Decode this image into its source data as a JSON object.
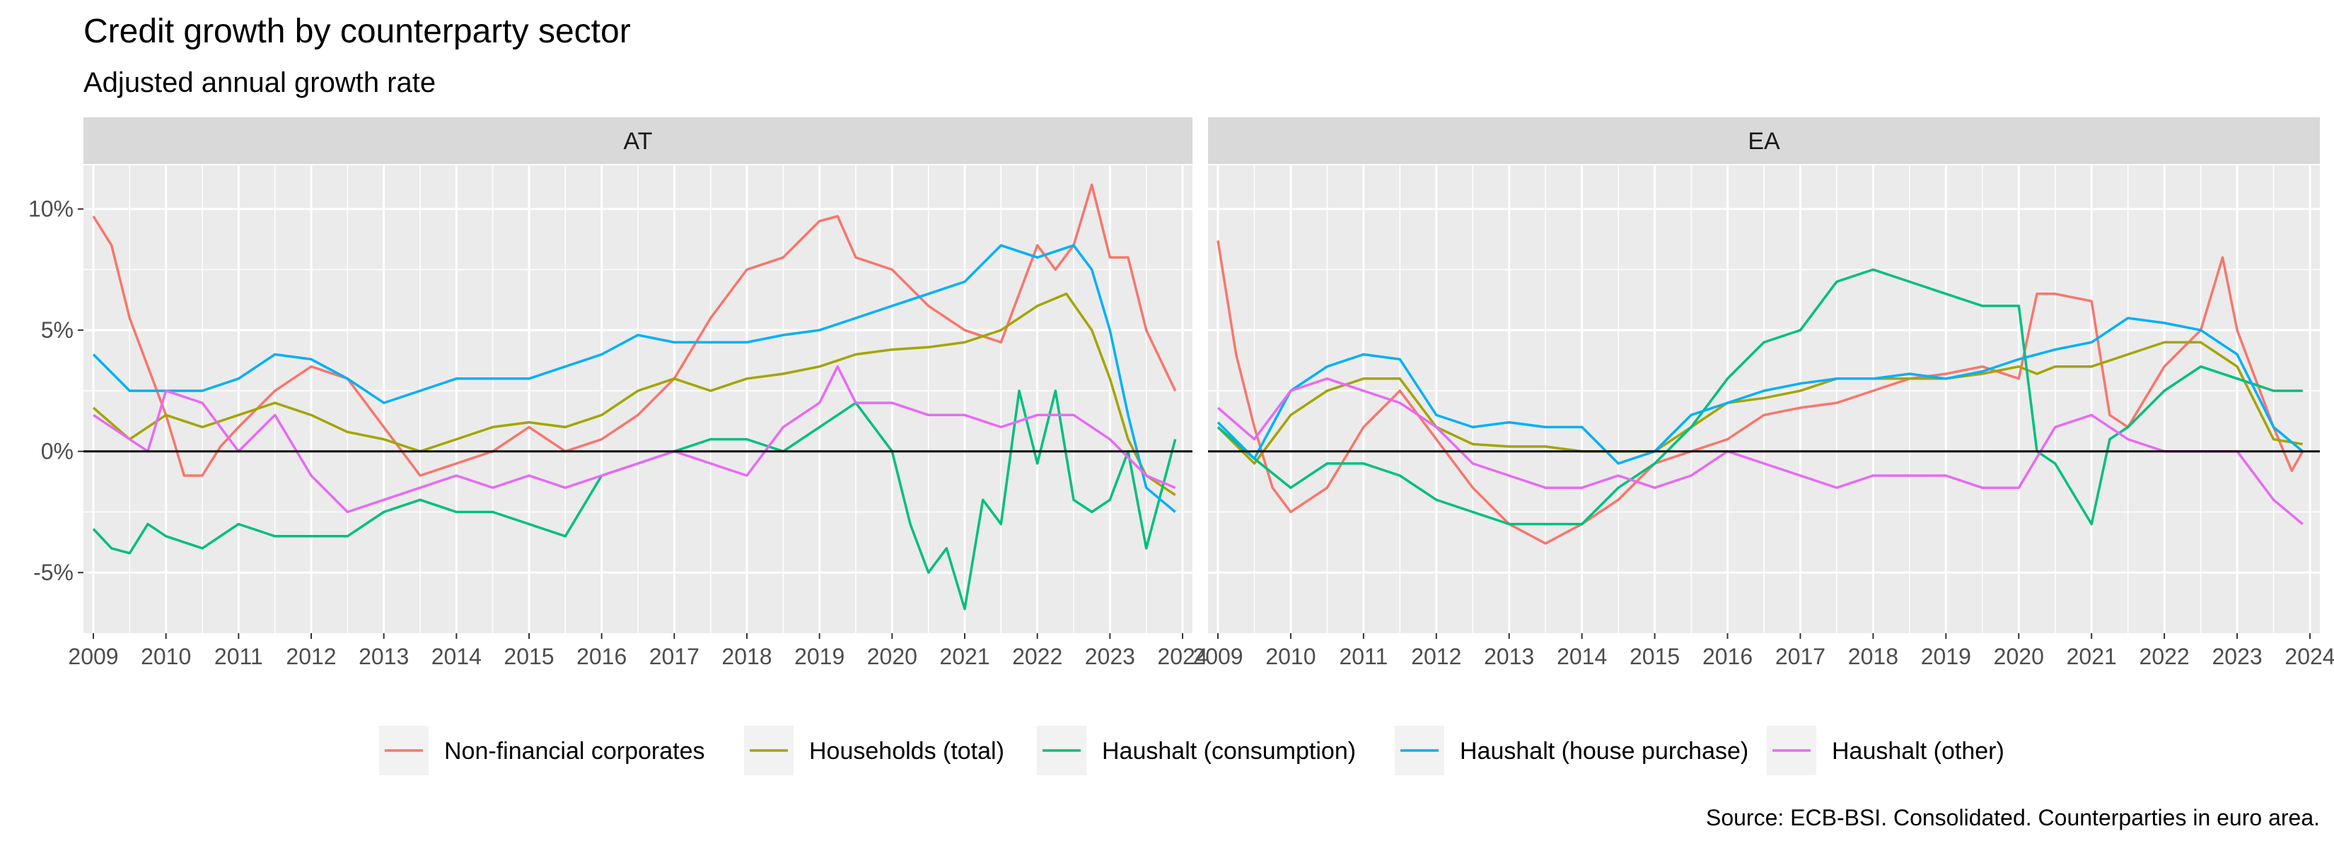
{
  "chart_data": {
    "type": "line",
    "title": "Credit growth by counterparty sector",
    "subtitle": "Adjusted annual growth rate",
    "caption": "Source: ECB-BSI. Consolidated. Counterparties in euro area.",
    "x_ticks": [
      2009,
      2010,
      2011,
      2012,
      2013,
      2014,
      2015,
      2016,
      2017,
      2018,
      2019,
      2020,
      2021,
      2022,
      2023,
      2024
    ],
    "y_ticks": [
      -5,
      0,
      5,
      10
    ],
    "y_tick_labels": [
      "-5%",
      "0%",
      "5%",
      "10%"
    ],
    "xlim": [
      2009,
      2024
    ],
    "ylim": [
      -7.5,
      11.8
    ],
    "grid": true,
    "legend_position": "bottom",
    "legend": [
      {
        "name": "Non-financial corporates",
        "color": "#F8766D"
      },
      {
        "name": "Households (total)",
        "color": "#A3A500"
      },
      {
        "name": "Haushalt (consumption)",
        "color": "#00BF7D"
      },
      {
        "name": "Haushalt (house purchase)",
        "color": "#00B0F6"
      },
      {
        "name": "Haushalt (other)",
        "color": "#E76BF3"
      }
    ],
    "panels": [
      {
        "label": "AT",
        "series": [
          {
            "color": "#F8766D",
            "x": [
              2009,
              2009.25,
              2009.5,
              2009.75,
              2010,
              2010.25,
              2010.5,
              2010.75,
              2011,
              2011.5,
              2012,
              2012.5,
              2013,
              2013.5,
              2014,
              2014.5,
              2015,
              2015.5,
              2016,
              2016.5,
              2017,
              2017.5,
              2018,
              2018.5,
              2019,
              2019.25,
              2019.5,
              2020,
              2020.5,
              2021,
              2021.5,
              2022,
              2022.25,
              2022.5,
              2022.75,
              2023,
              2023.25,
              2023.5,
              2023.9
            ],
            "y": [
              9.7,
              8.5,
              5.5,
              3.5,
              1.5,
              -1.0,
              -1.0,
              0.2,
              1.0,
              2.5,
              3.5,
              3.0,
              1.0,
              -1.0,
              -0.5,
              0.0,
              1.0,
              0.0,
              0.5,
              1.5,
              3.0,
              5.5,
              7.5,
              8.0,
              9.5,
              9.7,
              8.0,
              7.5,
              6.0,
              5.0,
              4.5,
              8.5,
              7.5,
              8.5,
              11.0,
              8.0,
              8.0,
              5.0,
              2.5
            ]
          },
          {
            "color": "#A3A500",
            "x": [
              2009,
              2009.5,
              2010,
              2010.5,
              2011,
              2011.5,
              2012,
              2012.5,
              2013,
              2013.5,
              2014,
              2014.5,
              2015,
              2015.5,
              2016,
              2016.5,
              2017,
              2017.5,
              2018,
              2018.5,
              2019,
              2019.5,
              2020,
              2020.5,
              2021,
              2021.5,
              2022,
              2022.4,
              2022.75,
              2023,
              2023.25,
              2023.5,
              2023.9
            ],
            "y": [
              1.8,
              0.5,
              1.5,
              1.0,
              1.5,
              2.0,
              1.5,
              0.8,
              0.5,
              0.0,
              0.5,
              1.0,
              1.2,
              1.0,
              1.5,
              2.5,
              3.0,
              2.5,
              3.0,
              3.2,
              3.5,
              4.0,
              4.2,
              4.3,
              4.5,
              5.0,
              6.0,
              6.5,
              5.0,
              3.0,
              0.5,
              -1.0,
              -1.8
            ]
          },
          {
            "color": "#00BF7D",
            "x": [
              2009,
              2009.25,
              2009.5,
              2009.75,
              2010,
              2010.5,
              2011,
              2011.5,
              2012,
              2012.5,
              2013,
              2013.5,
              2014,
              2014.5,
              2015,
              2015.5,
              2016,
              2016.5,
              2017,
              2017.5,
              2018,
              2018.5,
              2019,
              2019.5,
              2020,
              2020.25,
              2020.5,
              2020.75,
              2021,
              2021.25,
              2021.5,
              2021.75,
              2022,
              2022.25,
              2022.5,
              2022.75,
              2023,
              2023.25,
              2023.5,
              2023.9
            ],
            "y": [
              -3.2,
              -4.0,
              -4.2,
              -3.0,
              -3.5,
              -4.0,
              -3.0,
              -3.5,
              -3.5,
              -3.5,
              -2.5,
              -2.0,
              -2.5,
              -2.5,
              -3.0,
              -3.5,
              -1.0,
              -0.5,
              0.0,
              0.5,
              0.5,
              0.0,
              1.0,
              2.0,
              0.0,
              -3.0,
              -5.0,
              -4.0,
              -6.5,
              -2.0,
              -3.0,
              2.5,
              -0.5,
              2.5,
              -2.0,
              -2.5,
              -2.0,
              0.0,
              -4.0,
              0.5
            ]
          },
          {
            "color": "#00B0F6",
            "x": [
              2009,
              2009.5,
              2010,
              2010.5,
              2011,
              2011.5,
              2012,
              2012.5,
              2013,
              2013.5,
              2014,
              2014.5,
              2015,
              2015.5,
              2016,
              2016.5,
              2017,
              2017.5,
              2018,
              2018.5,
              2019,
              2019.5,
              2020,
              2020.5,
              2021,
              2021.5,
              2022,
              2022.5,
              2022.75,
              2023,
              2023.25,
              2023.5,
              2023.9
            ],
            "y": [
              4.0,
              2.5,
              2.5,
              2.5,
              3.0,
              4.0,
              3.8,
              3.0,
              2.0,
              2.5,
              3.0,
              3.0,
              3.0,
              3.5,
              4.0,
              4.8,
              4.5,
              4.5,
              4.5,
              4.8,
              5.0,
              5.5,
              6.0,
              6.5,
              7.0,
              8.5,
              8.0,
              8.5,
              7.5,
              5.0,
              1.5,
              -1.5,
              -2.5
            ]
          },
          {
            "color": "#E76BF3",
            "x": [
              2009,
              2009.5,
              2009.75,
              2010,
              2010.5,
              2011,
              2011.5,
              2012,
              2012.5,
              2013,
              2013.5,
              2014,
              2014.5,
              2015,
              2015.5,
              2016,
              2016.5,
              2017,
              2017.5,
              2018,
              2018.5,
              2019,
              2019.25,
              2019.5,
              2020,
              2020.5,
              2021,
              2021.5,
              2022,
              2022.5,
              2022.75,
              2023,
              2023.5,
              2023.9
            ],
            "y": [
              1.5,
              0.5,
              0.0,
              2.5,
              2.0,
              0.0,
              1.5,
              -1.0,
              -2.5,
              -2.0,
              -1.5,
              -1.0,
              -1.5,
              -1.0,
              -1.5,
              -1.0,
              -0.5,
              0.0,
              -0.5,
              -1.0,
              1.0,
              2.0,
              3.5,
              2.0,
              2.0,
              1.5,
              1.5,
              1.0,
              1.5,
              1.5,
              1.0,
              0.5,
              -1.0,
              -1.5
            ]
          }
        ]
      },
      {
        "label": "EA",
        "series": [
          {
            "color": "#F8766D",
            "x": [
              2009,
              2009.25,
              2009.5,
              2009.75,
              2010,
              2010.5,
              2011,
              2011.5,
              2012,
              2012.5,
              2013,
              2013.5,
              2014,
              2014.5,
              2015,
              2015.5,
              2016,
              2016.5,
              2017,
              2017.5,
              2018,
              2018.5,
              2019,
              2019.5,
              2020,
              2020.25,
              2020.5,
              2021,
              2021.25,
              2021.5,
              2022,
              2022.5,
              2022.8,
              2023,
              2023.25,
              2023.5,
              2023.75,
              2023.9
            ],
            "y": [
              8.7,
              4.0,
              1.0,
              -1.5,
              -2.5,
              -1.5,
              1.0,
              2.5,
              0.5,
              -1.5,
              -3.0,
              -3.8,
              -3.0,
              -2.0,
              -0.5,
              0.0,
              0.5,
              1.5,
              1.8,
              2.0,
              2.5,
              3.0,
              3.2,
              3.5,
              3.0,
              6.5,
              6.5,
              6.2,
              1.5,
              1.0,
              3.5,
              5.0,
              8.0,
              5.0,
              3.0,
              1.0,
              -0.8,
              0.0
            ]
          },
          {
            "color": "#A3A500",
            "x": [
              2009,
              2009.5,
              2010,
              2010.5,
              2011,
              2011.5,
              2012,
              2012.5,
              2013,
              2013.5,
              2014,
              2014.5,
              2015,
              2015.5,
              2016,
              2016.5,
              2017,
              2017.5,
              2018,
              2018.5,
              2019,
              2019.5,
              2020,
              2020.25,
              2020.5,
              2021,
              2021.5,
              2022,
              2022.5,
              2023,
              2023.5,
              2023.9
            ],
            "y": [
              1.0,
              -0.5,
              1.5,
              2.5,
              3.0,
              3.0,
              1.0,
              0.3,
              0.2,
              0.2,
              0.0,
              0.0,
              0.0,
              1.0,
              2.0,
              2.2,
              2.5,
              3.0,
              3.0,
              3.0,
              3.0,
              3.2,
              3.5,
              3.2,
              3.5,
              3.5,
              4.0,
              4.5,
              4.5,
              3.5,
              0.5,
              0.3
            ]
          },
          {
            "color": "#00BF7D",
            "x": [
              2009,
              2009.5,
              2010,
              2010.5,
              2011,
              2011.5,
              2012,
              2012.5,
              2013,
              2013.5,
              2014,
              2014.5,
              2015,
              2015.5,
              2016,
              2016.5,
              2017,
              2017.5,
              2018,
              2018.5,
              2019,
              2019.5,
              2020,
              2020.25,
              2020.5,
              2021,
              2021.25,
              2021.5,
              2022,
              2022.5,
              2023,
              2023.5,
              2023.9
            ],
            "y": [
              1.0,
              -0.3,
              -1.5,
              -0.5,
              -0.5,
              -1.0,
              -2.0,
              -2.5,
              -3.0,
              -3.0,
              -3.0,
              -1.5,
              -0.5,
              1.0,
              3.0,
              4.5,
              5.0,
              7.0,
              7.5,
              7.0,
              6.5,
              6.0,
              6.0,
              0.0,
              -0.5,
              -3.0,
              0.5,
              1.0,
              2.5,
              3.5,
              3.0,
              2.5,
              2.5
            ]
          },
          {
            "color": "#00B0F6",
            "x": [
              2009,
              2009.5,
              2010,
              2010.5,
              2011,
              2011.5,
              2012,
              2012.5,
              2013,
              2013.5,
              2014,
              2014.5,
              2015,
              2015.5,
              2016,
              2016.5,
              2017,
              2017.5,
              2018,
              2018.5,
              2019,
              2019.5,
              2020,
              2020.5,
              2021,
              2021.5,
              2022,
              2022.5,
              2023,
              2023.5,
              2023.9
            ],
            "y": [
              1.2,
              -0.3,
              2.5,
              3.5,
              4.0,
              3.8,
              1.5,
              1.0,
              1.2,
              1.0,
              1.0,
              -0.5,
              0.0,
              1.5,
              2.0,
              2.5,
              2.8,
              3.0,
              3.0,
              3.2,
              3.0,
              3.3,
              3.8,
              4.2,
              4.5,
              5.5,
              5.3,
              5.0,
              4.0,
              1.0,
              0.0
            ]
          },
          {
            "color": "#E76BF3",
            "x": [
              2009,
              2009.5,
              2010,
              2010.5,
              2011,
              2011.5,
              2012,
              2012.5,
              2013,
              2013.5,
              2014,
              2014.5,
              2015,
              2015.5,
              2016,
              2016.5,
              2017,
              2017.5,
              2018,
              2018.5,
              2019,
              2019.5,
              2020,
              2020.5,
              2021,
              2021.5,
              2022,
              2022.5,
              2023,
              2023.5,
              2023.9
            ],
            "y": [
              1.8,
              0.5,
              2.5,
              3.0,
              2.5,
              2.0,
              1.0,
              -0.5,
              -1.0,
              -1.5,
              -1.5,
              -1.0,
              -1.5,
              -1.0,
              0.0,
              -0.5,
              -1.0,
              -1.5,
              -1.0,
              -1.0,
              -1.0,
              -1.5,
              -1.5,
              1.0,
              1.5,
              0.5,
              0.0,
              0.0,
              0.0,
              -2.0,
              -3.0
            ]
          }
        ]
      }
    ]
  }
}
